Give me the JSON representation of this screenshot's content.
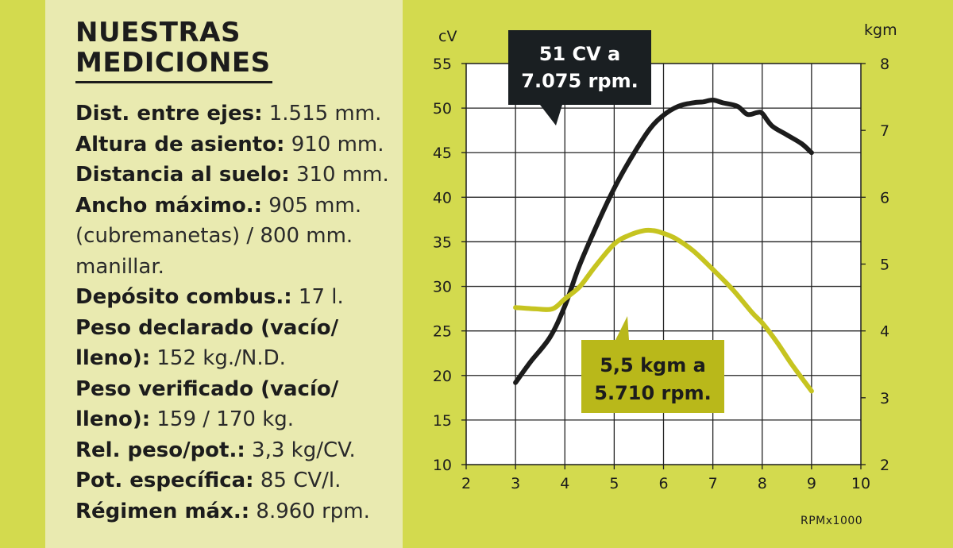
{
  "panel": {
    "title_line1": "NUESTRAS",
    "title_line2": "MEDICIONES",
    "specs": [
      {
        "label": "Dist. entre ejes:",
        "value": " 1.515 mm."
      },
      {
        "label": "Altura de asiento:",
        "value": " 910 mm."
      },
      {
        "label": "Distancia al suelo:",
        "value": " 310 mm."
      },
      {
        "label": "Ancho máximo.:",
        "value": " 905 mm."
      },
      {
        "label": "",
        "value": "(cubremanetas) / 800 mm."
      },
      {
        "label": "",
        "value": "manillar."
      },
      {
        "label": "Depósito combus.:",
        "value": " 17 l."
      },
      {
        "label": "Peso declarado (vacío/",
        "value": ""
      },
      {
        "label": "lleno):",
        "value": " 152 kg./N.D.",
        "bold_part": "/N."
      },
      {
        "label": "Peso verificado (vacío/",
        "value": ""
      },
      {
        "label": "lleno):",
        "value": " 159 / 170 kg."
      },
      {
        "label": "Rel. peso/pot.:",
        "value": " 3,3 kg/CV."
      },
      {
        "label": "Pot. específica:",
        "value": " 85 CV/l."
      },
      {
        "label": "Régimen máx.:",
        "value": " 8.960 rpm."
      }
    ]
  },
  "chart_data": {
    "type": "line",
    "x_label": "RPMx1000",
    "y_left_label": "cV",
    "y_right_label": "kgm",
    "x_ticks": [
      2,
      3,
      4,
      5,
      6,
      7,
      8,
      9,
      10
    ],
    "y_left_ticks": [
      10,
      15,
      20,
      25,
      30,
      35,
      40,
      45,
      50,
      55
    ],
    "y_right_ticks": [
      2,
      3,
      4,
      5,
      6,
      7,
      8
    ],
    "xlim": [
      2,
      10
    ],
    "ylim_left": [
      10,
      55
    ],
    "ylim_right": [
      2,
      8
    ],
    "grid": true,
    "series": [
      {
        "name": "power",
        "axis": "left",
        "color": "#1c1c1c",
        "x": [
          3.0,
          3.3,
          3.7,
          4.0,
          4.3,
          4.7,
          5.0,
          5.3,
          5.7,
          6.0,
          6.3,
          6.6,
          6.8,
          7.0,
          7.2,
          7.5,
          7.7,
          7.9,
          8.0,
          8.2,
          8.5,
          8.8,
          9.0
        ],
        "y": [
          19.2,
          21.5,
          24.3,
          27.8,
          32.4,
          37.5,
          41.0,
          44.0,
          47.5,
          49.2,
          50.2,
          50.6,
          50.7,
          50.9,
          50.6,
          50.2,
          49.3,
          49.5,
          49.4,
          48.0,
          47.0,
          46.0,
          45.0
        ]
      },
      {
        "name": "torque",
        "axis": "right",
        "color": "#c6c420",
        "x": [
          3.0,
          3.4,
          3.75,
          4.0,
          4.3,
          4.6,
          5.0,
          5.3,
          5.6,
          5.8,
          6.0,
          6.25,
          6.6,
          7.0,
          7.4,
          7.8,
          8.0,
          8.3,
          8.6,
          9.0
        ],
        "y": [
          4.35,
          4.33,
          4.33,
          4.48,
          4.66,
          4.95,
          5.3,
          5.43,
          5.5,
          5.5,
          5.46,
          5.38,
          5.2,
          4.92,
          4.62,
          4.27,
          4.12,
          3.83,
          3.5,
          3.1
        ]
      }
    ],
    "annotations": [
      {
        "text_line1": "51 CV a",
        "text_line2": "7.075 rpm.",
        "style": "dark"
      },
      {
        "text_line1": "5,5 kgm a",
        "text_line2": "5.710 rpm.",
        "style": "olive"
      }
    ]
  }
}
